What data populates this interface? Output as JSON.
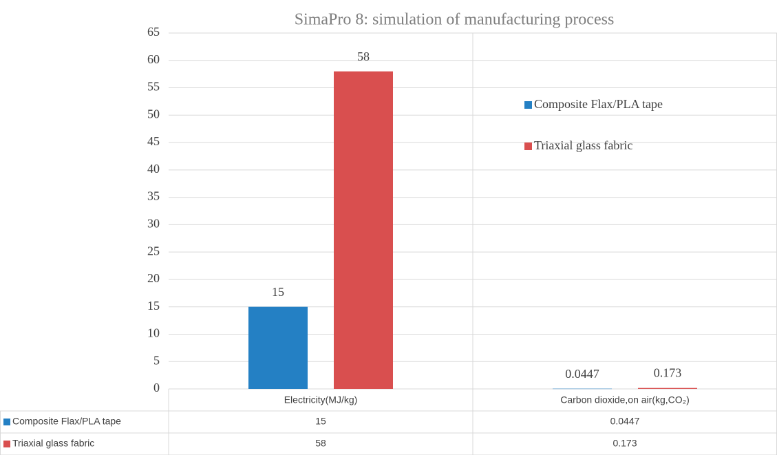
{
  "chart_data": {
    "type": "bar",
    "title": "SimaPro 8: simulation of manufacturing process",
    "categories": [
      "Electricity(MJ/kg)",
      "Carbon dioxide,on air(kg,CO₂)"
    ],
    "series": [
      {
        "name": "Composite Flax/PLA tape",
        "color": "#2480c4",
        "values": [
          15,
          0.0447
        ]
      },
      {
        "name": "Triaxial glass fabric",
        "color": "#d94f4f",
        "values": [
          58,
          0.173
        ]
      }
    ],
    "ylim": [
      0,
      65
    ],
    "yticks": [
      0,
      5,
      10,
      15,
      20,
      25,
      30,
      35,
      40,
      45,
      50,
      55,
      60,
      65
    ],
    "grid": true
  }
}
